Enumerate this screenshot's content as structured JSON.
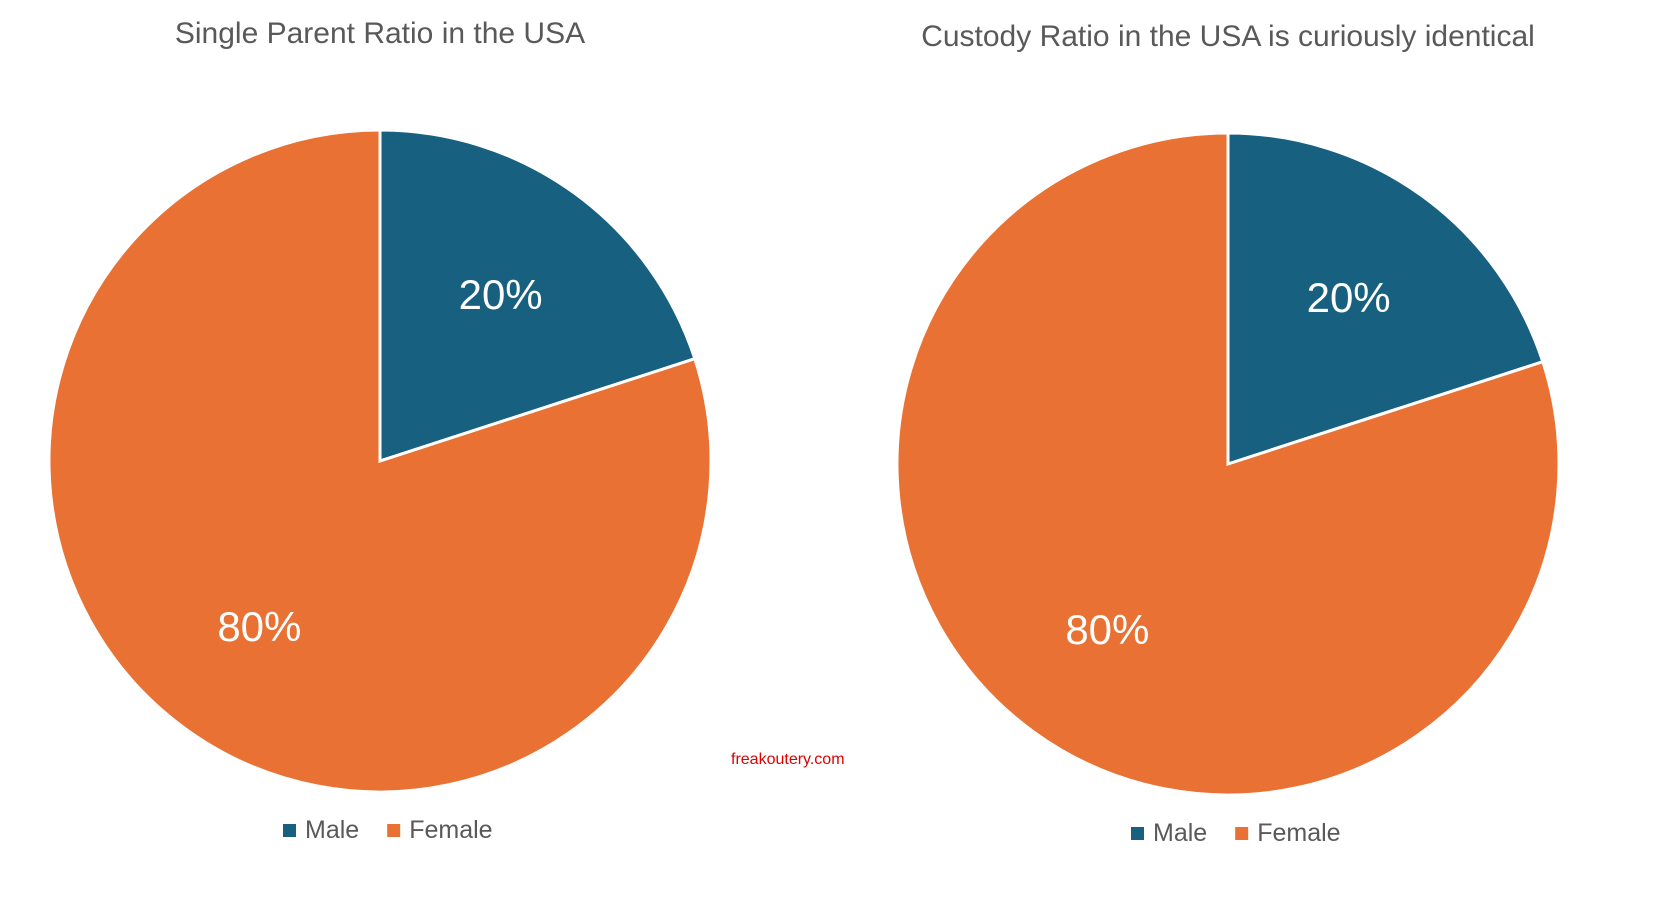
{
  "watermark": "freakoutery.com",
  "colors": {
    "male": "#17607F",
    "female": "#E87133",
    "title": "#595959",
    "label": "#ffffff",
    "watermark": "#e00000"
  },
  "chart_data": [
    {
      "type": "pie",
      "title": "Single Parent Ratio in the USA",
      "categories": [
        "Male",
        "Female"
      ],
      "values": [
        20,
        80
      ],
      "data_labels": [
        "20%",
        "80%"
      ],
      "legend_position": "bottom"
    },
    {
      "type": "pie",
      "title": "Custody Ratio in the USA is curiously identical",
      "categories": [
        "Male",
        "Female"
      ],
      "values": [
        20,
        80
      ],
      "data_labels": [
        "20%",
        "80%"
      ],
      "legend_position": "bottom"
    }
  ]
}
